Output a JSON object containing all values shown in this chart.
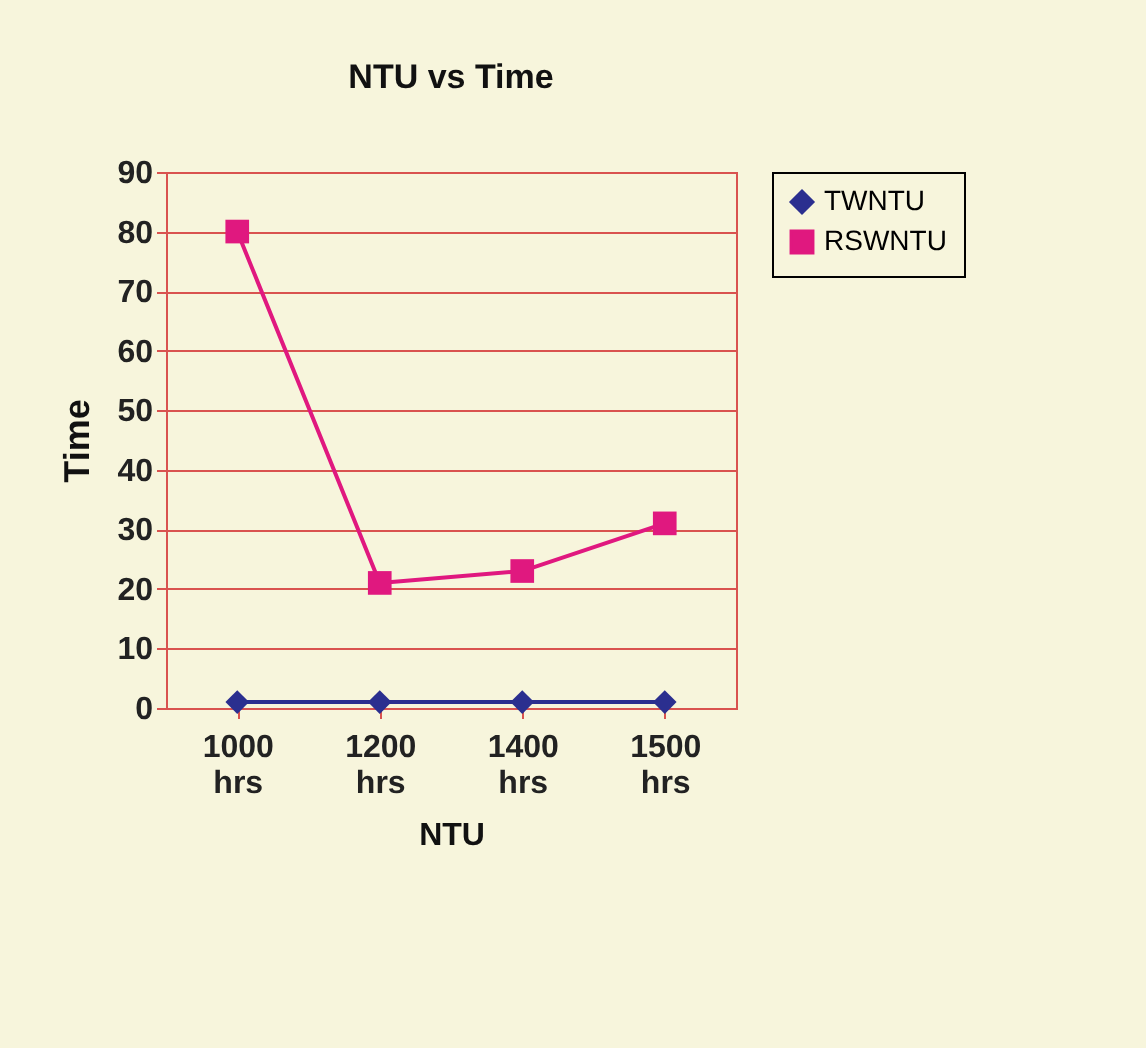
{
  "chart_data": {
    "type": "line",
    "title": "NTU vs Time",
    "xlabel": "NTU",
    "ylabel": "Time",
    "categories": [
      "1000 hrs",
      "1200 hrs",
      "1400 hrs",
      "1500 hrs"
    ],
    "series": [
      {
        "name": "TWNTU",
        "color": "#2b2f8f",
        "marker": "diamond",
        "values": [
          1,
          1,
          1,
          1
        ]
      },
      {
        "name": "RSWNTU",
        "color": "#e0187f",
        "marker": "square",
        "values": [
          80,
          21,
          23,
          31
        ]
      }
    ],
    "ylim": [
      0,
      90
    ],
    "yticks": [
      0,
      10,
      20,
      30,
      40,
      50,
      60,
      70,
      80,
      90
    ],
    "grid": "y",
    "legend": "right"
  }
}
